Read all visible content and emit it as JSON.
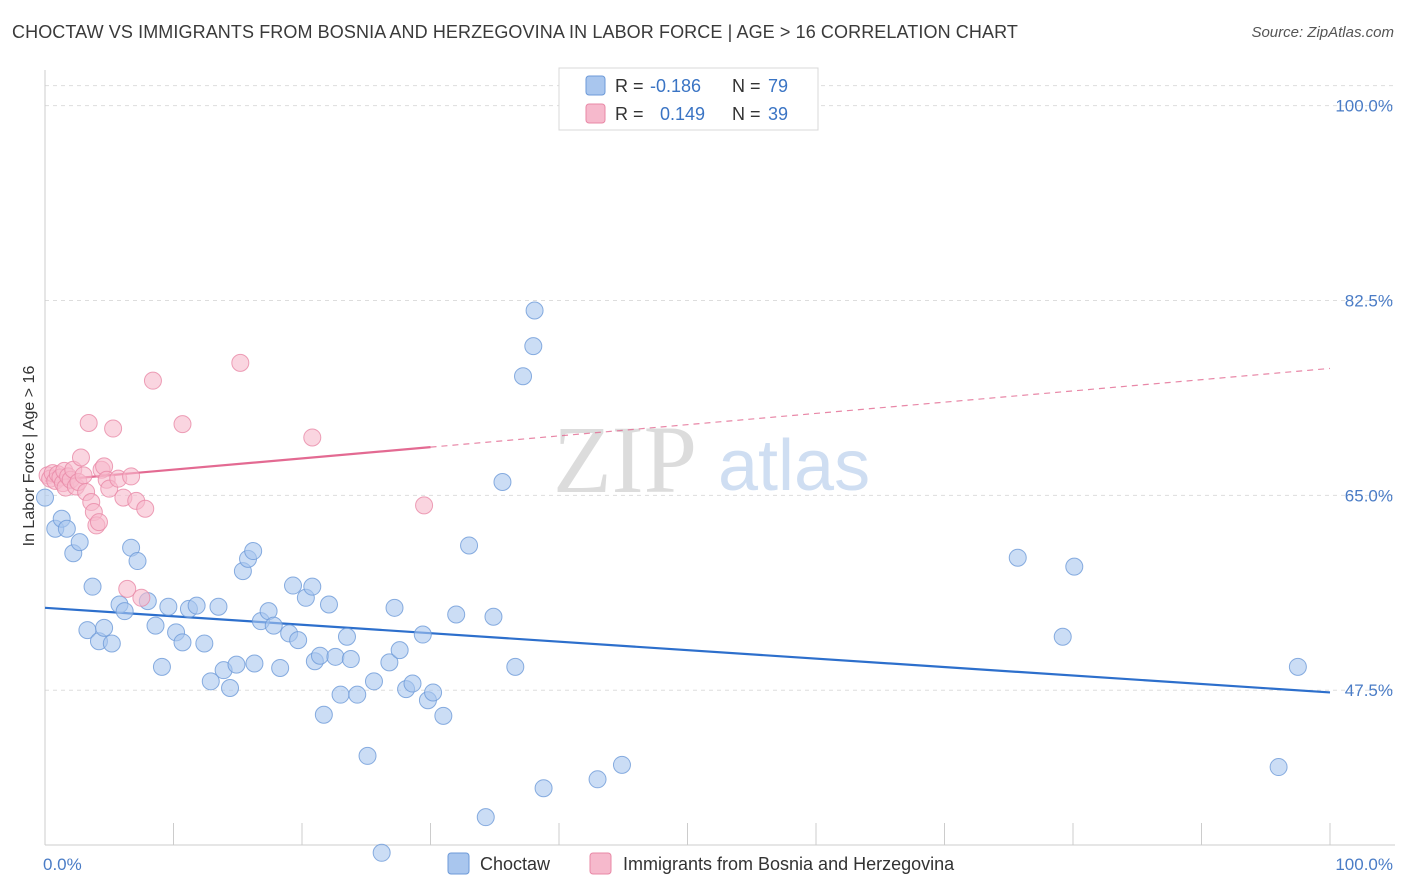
{
  "title": "CHOCTAW VS IMMIGRANTS FROM BOSNIA AND HERZEGOVINA IN LABOR FORCE | AGE > 16 CORRELATION CHART",
  "source": "Source: ZipAtlas.com",
  "watermark": {
    "zip": "ZIP",
    "atlas": "atlas"
  },
  "colors": {
    "blue_fill": "#a9c6ee",
    "blue_stroke": "#6d9ad8",
    "blue_line": "#2d6fcc",
    "pink_fill": "#f6b9cc",
    "pink_stroke": "#e888a6",
    "pink_line": "#e36a92",
    "grid": "#dddddd",
    "tick_text": "#4a7cc6"
  },
  "legend": {
    "rows": [
      {
        "r_label": "R =",
        "r_value": "-0.186",
        "n_label": "N =",
        "n_value": "79"
      },
      {
        "r_label": "R =",
        "r_value": "0.149",
        "n_label": "N =",
        "n_value": "39"
      }
    ]
  },
  "chart_data": {
    "type": "scatter",
    "title": "CHOCTAW VS IMMIGRANTS FROM BOSNIA AND HERZEGOVINA IN LABOR FORCE | AGE > 16 CORRELATION CHART",
    "xlabel": "",
    "ylabel": "In Labor Force | Age > 16",
    "xlim": [
      0,
      100
    ],
    "ylim": [
      33.6,
      103.2
    ],
    "x_tick_labels": [
      "0.0%",
      "100.0%"
    ],
    "y_ticks": [
      47.5,
      65.0,
      82.5,
      100.0
    ],
    "y_tick_labels": [
      "47.5%",
      "65.0%",
      "82.5%",
      "100.0%"
    ],
    "grid": true,
    "legend_position": "top-center",
    "series": [
      {
        "name": "Choctaw",
        "color": "#a9c6ee",
        "r": -0.186,
        "n": 79,
        "trend": {
          "x": [
            0,
            100
          ],
          "y": [
            54.9,
            47.3
          ],
          "dashed_from": null
        },
        "points": [
          [
            0.0,
            64.8
          ],
          [
            0.8,
            62.0
          ],
          [
            1.3,
            62.9
          ],
          [
            1.7,
            62.0
          ],
          [
            2.2,
            59.8
          ],
          [
            2.7,
            60.8
          ],
          [
            3.3,
            52.9
          ],
          [
            3.7,
            56.8
          ],
          [
            4.2,
            51.9
          ],
          [
            4.6,
            53.1
          ],
          [
            5.2,
            51.7
          ],
          [
            5.8,
            55.2
          ],
          [
            6.2,
            54.6
          ],
          [
            6.7,
            60.3
          ],
          [
            7.2,
            59.1
          ],
          [
            8.0,
            55.5
          ],
          [
            8.6,
            53.3
          ],
          [
            9.1,
            49.6
          ],
          [
            9.6,
            55.0
          ],
          [
            10.2,
            52.7
          ],
          [
            10.7,
            51.8
          ],
          [
            11.2,
            54.8
          ],
          [
            11.8,
            55.1
          ],
          [
            12.4,
            51.7
          ],
          [
            12.9,
            48.3
          ],
          [
            13.5,
            55.0
          ],
          [
            13.9,
            49.3
          ],
          [
            14.4,
            47.7
          ],
          [
            14.9,
            49.8
          ],
          [
            15.4,
            58.2
          ],
          [
            15.8,
            59.3
          ],
          [
            16.2,
            60.0
          ],
          [
            16.3,
            49.9
          ],
          [
            16.8,
            53.7
          ],
          [
            17.4,
            54.6
          ],
          [
            17.8,
            53.3
          ],
          [
            18.3,
            49.5
          ],
          [
            19.0,
            52.6
          ],
          [
            19.3,
            56.9
          ],
          [
            19.7,
            52.0
          ],
          [
            20.3,
            55.8
          ],
          [
            20.8,
            56.8
          ],
          [
            21.0,
            50.1
          ],
          [
            21.4,
            50.6
          ],
          [
            21.7,
            45.3
          ],
          [
            22.1,
            55.2
          ],
          [
            22.6,
            50.5
          ],
          [
            23.0,
            47.1
          ],
          [
            23.5,
            52.3
          ],
          [
            23.8,
            50.3
          ],
          [
            24.3,
            47.1
          ],
          [
            25.1,
            41.6
          ],
          [
            25.6,
            48.3
          ],
          [
            26.2,
            32.9
          ],
          [
            26.8,
            50.0
          ],
          [
            27.2,
            54.9
          ],
          [
            27.6,
            51.1
          ],
          [
            28.1,
            47.6
          ],
          [
            28.6,
            48.1
          ],
          [
            29.4,
            52.5
          ],
          [
            29.8,
            46.6
          ],
          [
            30.2,
            47.3
          ],
          [
            31.0,
            45.2
          ],
          [
            32.0,
            54.3
          ],
          [
            33.0,
            60.5
          ],
          [
            34.3,
            36.1
          ],
          [
            34.9,
            54.1
          ],
          [
            35.6,
            66.2
          ],
          [
            36.6,
            49.6
          ],
          [
            37.2,
            75.7
          ],
          [
            38.0,
            78.4
          ],
          [
            38.1,
            81.6
          ],
          [
            38.8,
            38.7
          ],
          [
            43.0,
            39.5
          ],
          [
            44.9,
            40.8
          ],
          [
            75.7,
            59.4
          ],
          [
            79.2,
            52.3
          ],
          [
            80.1,
            58.6
          ],
          [
            96.0,
            40.6
          ],
          [
            97.5,
            49.6
          ]
        ]
      },
      {
        "name": "Immigrants from Bosnia and Herzegovina",
        "color": "#f6b9cc",
        "r": 0.149,
        "n": 39,
        "trend": {
          "x": [
            0,
            100
          ],
          "y": [
            66.3,
            76.4
          ],
          "dashed_from": 30.0
        },
        "points": [
          [
            0.2,
            66.8
          ],
          [
            0.4,
            66.5
          ],
          [
            0.6,
            67.0
          ],
          [
            0.8,
            66.3
          ],
          [
            1.0,
            66.9
          ],
          [
            1.2,
            66.6
          ],
          [
            1.4,
            66.1
          ],
          [
            1.5,
            67.2
          ],
          [
            1.6,
            65.7
          ],
          [
            1.8,
            66.7
          ],
          [
            2.0,
            66.4
          ],
          [
            2.2,
            67.3
          ],
          [
            2.4,
            65.8
          ],
          [
            2.6,
            66.2
          ],
          [
            2.8,
            68.4
          ],
          [
            3.0,
            66.8
          ],
          [
            3.2,
            65.3
          ],
          [
            3.4,
            71.5
          ],
          [
            3.6,
            64.4
          ],
          [
            3.8,
            63.5
          ],
          [
            4.0,
            62.3
          ],
          [
            4.2,
            62.6
          ],
          [
            4.4,
            67.3
          ],
          [
            4.6,
            67.6
          ],
          [
            4.8,
            66.4
          ],
          [
            5.0,
            65.6
          ],
          [
            5.3,
            71.0
          ],
          [
            5.7,
            66.5
          ],
          [
            6.1,
            64.8
          ],
          [
            6.4,
            56.6
          ],
          [
            6.7,
            66.7
          ],
          [
            7.1,
            64.5
          ],
          [
            7.5,
            55.8
          ],
          [
            7.8,
            63.8
          ],
          [
            8.4,
            75.3
          ],
          [
            10.7,
            71.4
          ],
          [
            15.2,
            76.9
          ],
          [
            20.8,
            70.2
          ],
          [
            29.5,
            64.1
          ]
        ]
      }
    ]
  },
  "bottom_legend": [
    {
      "label": "Choctaw"
    },
    {
      "label": "Immigrants from Bosnia and Herzegovina"
    }
  ]
}
